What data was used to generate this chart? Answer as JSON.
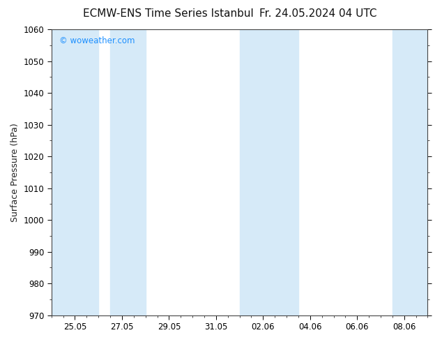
{
  "title": "ECMW-ENS Time Series Istanbul",
  "title_right": "Fr. 24.05.2024 04 UTC",
  "ylabel": "Surface Pressure (hPa)",
  "ylim": [
    970,
    1060
  ],
  "ytick_interval": 10,
  "bg_color": "#ffffff",
  "watermark": "© woweather.com",
  "watermark_color": "#1E90FF",
  "shade_color": "#d6eaf8",
  "shade_alpha": 1.0,
  "xtick_labels": [
    "25.05",
    "27.05",
    "29.05",
    "31.05",
    "02.06",
    "04.06",
    "06.06",
    "08.06"
  ],
  "xtick_positions": [
    1.0,
    3.0,
    5.0,
    7.0,
    9.0,
    11.0,
    13.0,
    15.0
  ],
  "xlim": [
    0.0,
    16.0
  ],
  "shaded_bands": [
    [
      0.0,
      2.0
    ],
    [
      2.5,
      4.0
    ],
    [
      8.0,
      10.5
    ],
    [
      14.5,
      16.0
    ]
  ],
  "title_fontsize": 11,
  "tick_fontsize": 8.5,
  "ylabel_fontsize": 9,
  "watermark_fontsize": 8.5
}
